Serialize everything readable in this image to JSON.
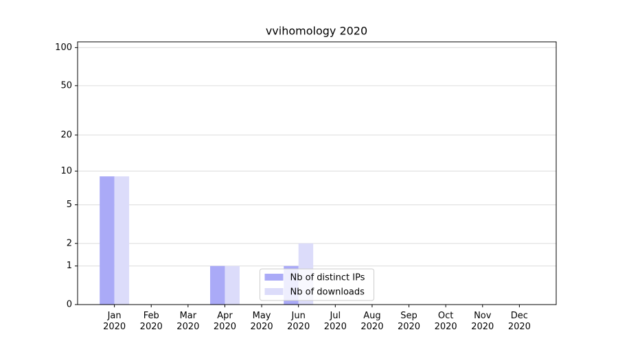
{
  "chart_data": {
    "type": "bar",
    "title": "vvihomology 2020",
    "categories": [
      "Jan\n2020",
      "Feb\n2020",
      "Mar\n2020",
      "Apr\n2020",
      "May\n2020",
      "Jun\n2020",
      "Jul\n2020",
      "Aug\n2020",
      "Sep\n2020",
      "Oct\n2020",
      "Nov\n2020",
      "Dec\n2020"
    ],
    "series": [
      {
        "name": "Nb of distinct IPs",
        "color": "#aaaaf7",
        "values": [
          9,
          0,
          0,
          1,
          0,
          1,
          0,
          0,
          0,
          0,
          0,
          0
        ]
      },
      {
        "name": "Nb of downloads",
        "color": "#dcdcfa",
        "values": [
          9,
          0,
          0,
          1,
          0,
          2,
          0,
          0,
          0,
          0,
          0,
          0
        ]
      }
    ],
    "yscale": "log1p",
    "ylim": [
      0,
      111
    ],
    "yticks": [
      0,
      1,
      2,
      5,
      10,
      20,
      50,
      100
    ],
    "grid": true,
    "legend": "lower center"
  }
}
